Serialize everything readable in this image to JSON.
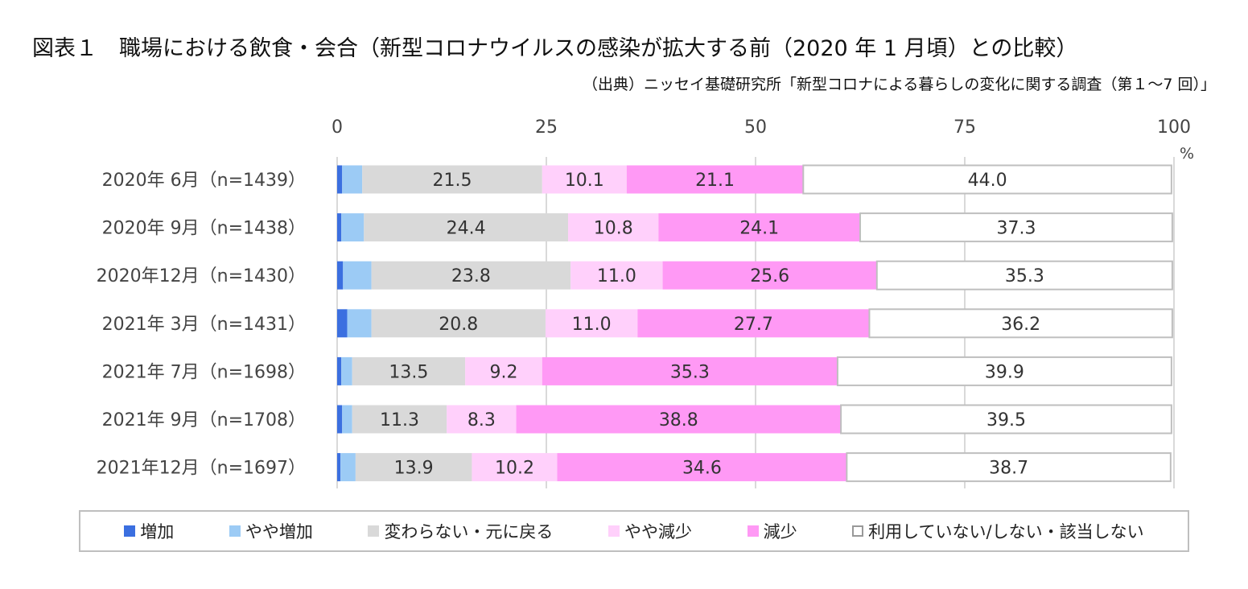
{
  "title": "図表１　職場における飲食・会合（新型コロナウイルスの感染が拡大する前（2020 年 1 月頃）との比較）",
  "source": "（出典）ニッセイ基礎研究所「新型コロナによる暮らしの変化に関する調査（第１～7 回）」",
  "chart_data": {
    "type": "bar",
    "orientation": "horizontal",
    "stacked": true,
    "percent_unit": "%",
    "xlim": [
      0,
      100
    ],
    "x_ticks": [
      "0",
      "25",
      "50",
      "75",
      "100"
    ],
    "grid": true,
    "legend_position": "bottom",
    "categories": [
      "2020年 6月（n=1439）",
      "2020年 9月（n=1438）",
      "2020年12月（n=1430）",
      "2021年 3月（n=1431）",
      "2021年 7月（n=1698）",
      "2021年 9月（n=1708）",
      "2021年12月（n=1697）"
    ],
    "series": [
      {
        "name": "増加",
        "color": "#3b6fe0",
        "values": [
          0.6,
          0.5,
          0.7,
          1.2,
          0.5,
          0.6,
          0.4
        ],
        "labels": [
          "",
          "",
          "",
          "",
          "",
          "",
          ""
        ]
      },
      {
        "name": "やや増加",
        "color": "#9ccbf5",
        "values": [
          2.4,
          2.7,
          3.4,
          2.9,
          1.3,
          1.2,
          1.8
        ],
        "labels": [
          "",
          "",
          "",
          "",
          "",
          "",
          ""
        ]
      },
      {
        "name": "変わらない・元に戻る",
        "color": "#d9d9d9",
        "values": [
          21.5,
          24.4,
          23.8,
          20.8,
          13.5,
          11.3,
          13.9
        ],
        "labels": [
          "21.5",
          "24.4",
          "23.8",
          "20.8",
          "13.5",
          "11.3",
          "13.9"
        ]
      },
      {
        "name": "やや減少",
        "color": "#ffd0fb",
        "values": [
          10.1,
          10.8,
          11.0,
          11.0,
          9.2,
          8.3,
          10.2
        ],
        "labels": [
          "10.1",
          "10.8",
          "11.0",
          "11.0",
          "9.2",
          "8.3",
          "10.2"
        ]
      },
      {
        "name": "減少",
        "color": "#ff99f5",
        "values": [
          21.1,
          24.1,
          25.6,
          27.7,
          35.3,
          38.8,
          34.6
        ],
        "labels": [
          "21.1",
          "24.1",
          "25.6",
          "27.7",
          "35.3",
          "38.8",
          "34.6"
        ]
      },
      {
        "name": "利用していない/しない・該当しない",
        "color": "#ffffff",
        "values": [
          44.0,
          37.3,
          35.3,
          36.2,
          39.9,
          39.5,
          38.7
        ],
        "labels": [
          "44.0",
          "37.3",
          "35.3",
          "36.2",
          "39.9",
          "39.5",
          "38.7"
        ]
      }
    ]
  }
}
